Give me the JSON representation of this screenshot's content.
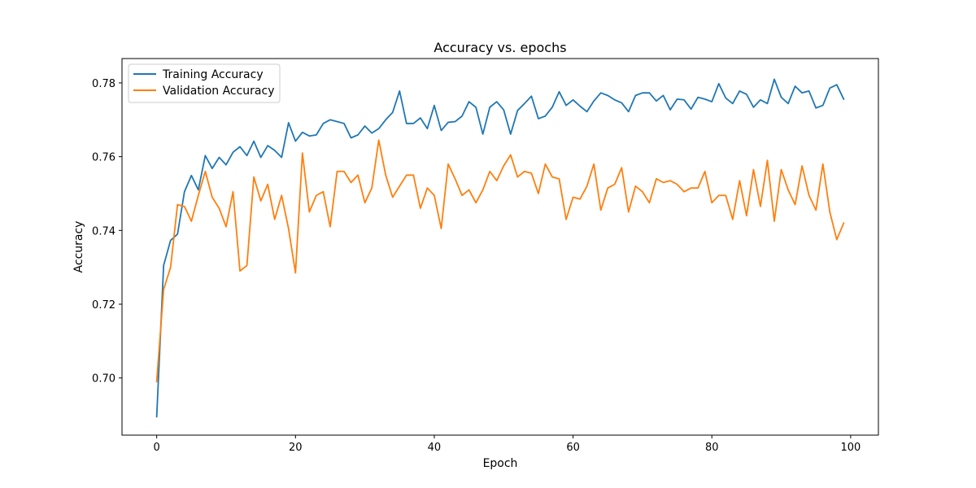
{
  "chart_data": {
    "type": "line",
    "title": "Accuracy vs. epochs",
    "xlabel": "Epoch",
    "ylabel": "Accuracy",
    "xlim": [
      -5.0,
      104.0
    ],
    "ylim": [
      0.6845,
      0.7866
    ],
    "xticks": [
      0,
      20,
      40,
      60,
      80,
      100
    ],
    "yticks": [
      0.7,
      0.72,
      0.74,
      0.76,
      0.78
    ],
    "legend_position": "top-left",
    "grid": false,
    "series": [
      {
        "name": "Training Accuracy",
        "color": "#1f77b4",
        "values": [
          0.6895,
          0.7305,
          0.7373,
          0.739,
          0.7505,
          0.7549,
          0.751,
          0.7603,
          0.7568,
          0.7598,
          0.7578,
          0.7612,
          0.7627,
          0.7603,
          0.7642,
          0.7598,
          0.763,
          0.7617,
          0.7598,
          0.7692,
          0.7642,
          0.7666,
          0.7656,
          0.7659,
          0.769,
          0.77,
          0.7695,
          0.769,
          0.7651,
          0.7659,
          0.7683,
          0.7664,
          0.7676,
          0.77,
          0.772,
          0.7778,
          0.769,
          0.769,
          0.7705,
          0.7676,
          0.7739,
          0.7671,
          0.7693,
          0.7695,
          0.771,
          0.7749,
          0.7734,
          0.7661,
          0.7734,
          0.7749,
          0.7727,
          0.7661,
          0.7725,
          0.7744,
          0.7764,
          0.7703,
          0.771,
          0.7734,
          0.7776,
          0.7739,
          0.7754,
          0.7737,
          0.7722,
          0.7751,
          0.7773,
          0.7766,
          0.7754,
          0.7746,
          0.7722,
          0.7766,
          0.7773,
          0.7773,
          0.7751,
          0.7766,
          0.7727,
          0.7756,
          0.7754,
          0.7729,
          0.7761,
          0.7756,
          0.7749,
          0.7798,
          0.7759,
          0.7744,
          0.7778,
          0.7769,
          0.7734,
          0.7754,
          0.7744,
          0.781,
          0.7761,
          0.7744,
          0.7791,
          0.7773,
          0.7778,
          0.7732,
          0.7739,
          0.7786,
          0.7795,
          0.7756
        ]
      },
      {
        "name": "Validation Accuracy",
        "color": "#ff7f0e",
        "values": [
          0.699,
          0.724,
          0.73,
          0.747,
          0.7465,
          0.7425,
          0.7495,
          0.756,
          0.749,
          0.746,
          0.741,
          0.7505,
          0.729,
          0.7305,
          0.7545,
          0.748,
          0.7525,
          0.743,
          0.7495,
          0.7405,
          0.7285,
          0.761,
          0.745,
          0.7495,
          0.7505,
          0.741,
          0.756,
          0.756,
          0.753,
          0.755,
          0.7475,
          0.7515,
          0.7645,
          0.755,
          0.749,
          0.752,
          0.755,
          0.755,
          0.746,
          0.7515,
          0.7495,
          0.7405,
          0.758,
          0.754,
          0.7495,
          0.751,
          0.7475,
          0.751,
          0.756,
          0.7535,
          0.7575,
          0.7605,
          0.7545,
          0.756,
          0.7555,
          0.75,
          0.758,
          0.7545,
          0.754,
          0.743,
          0.749,
          0.7485,
          0.752,
          0.758,
          0.7455,
          0.7515,
          0.7525,
          0.757,
          0.745,
          0.752,
          0.7505,
          0.7475,
          0.754,
          0.753,
          0.7535,
          0.7525,
          0.7505,
          0.7515,
          0.7515,
          0.756,
          0.7475,
          0.7495,
          0.7495,
          0.743,
          0.7535,
          0.744,
          0.7565,
          0.7465,
          0.759,
          0.7425,
          0.7565,
          0.751,
          0.747,
          0.7575,
          0.7495,
          0.7455,
          0.758,
          0.745,
          0.7375,
          0.742
        ]
      }
    ]
  }
}
